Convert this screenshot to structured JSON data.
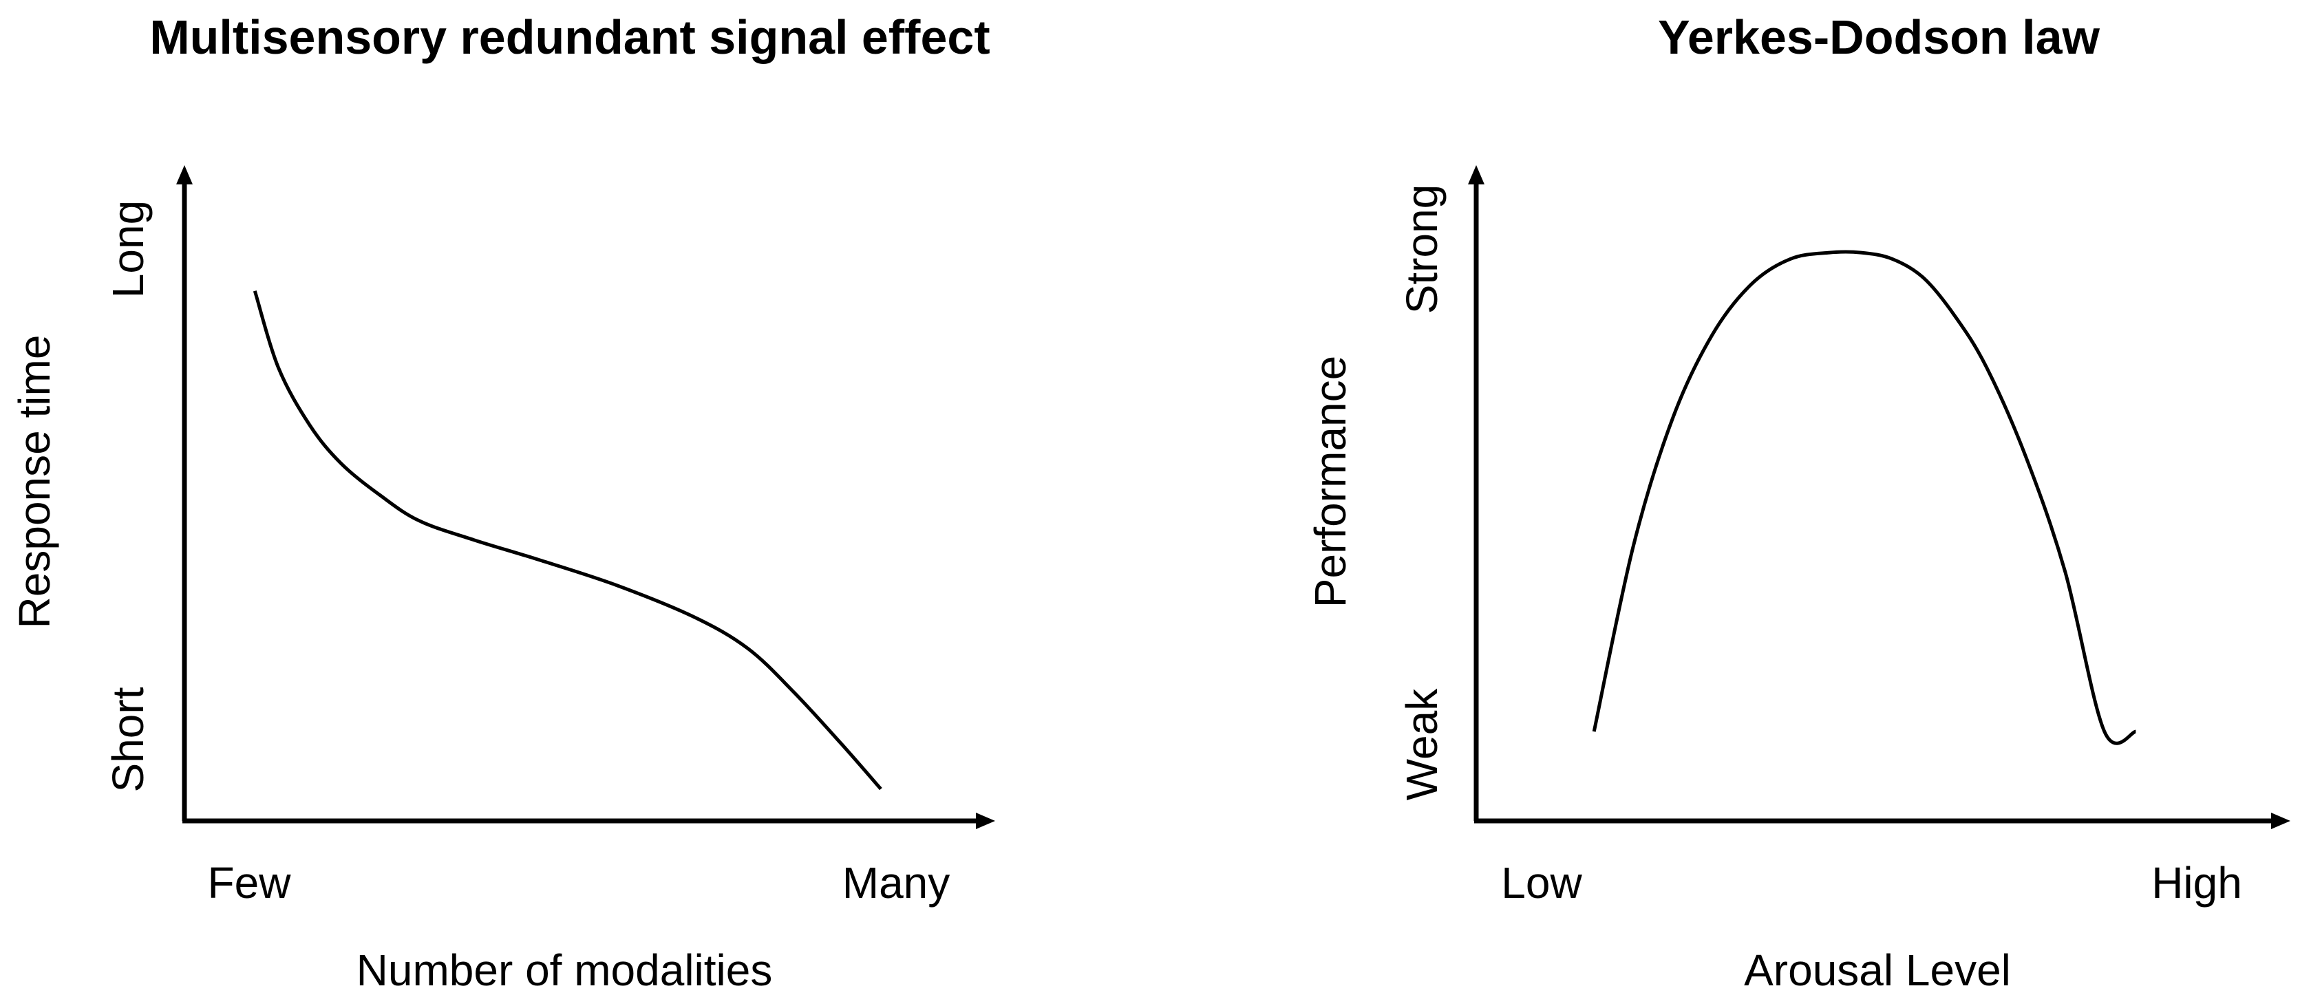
{
  "chart_data": [
    {
      "type": "line",
      "title": "Multisensory redundant signal effect",
      "xlabel": "Number of modalities",
      "ylabel": "Response time",
      "x_ticks": [
        "Few",
        "Many"
      ],
      "y_ticks": [
        "Short",
        "Long"
      ],
      "xlim": [
        0,
        100
      ],
      "ylim": [
        0,
        100
      ],
      "series": [
        {
          "name": "Response time",
          "x": [
            9,
            12,
            16,
            20,
            25,
            30,
            37,
            45,
            55,
            65,
            72,
            78,
            84,
            89
          ],
          "y": [
            83,
            71,
            62,
            56,
            51,
            47,
            44,
            41,
            37,
            32,
            27,
            20,
            12,
            5
          ]
        }
      ]
    },
    {
      "type": "line",
      "title": "Yerkes-Dodson law",
      "xlabel": "Arousal Level",
      "ylabel": "Performance",
      "x_ticks": [
        "Low",
        "High"
      ],
      "y_ticks": [
        "Weak",
        "Strong"
      ],
      "xlim": [
        0,
        100
      ],
      "ylim": [
        0,
        100
      ],
      "series": [
        {
          "name": "Performance",
          "x": [
            15,
            20,
            25,
            30,
            35,
            40,
            45,
            49,
            53,
            57,
            61,
            65,
            70,
            75,
            80,
            84
          ],
          "y": [
            14,
            43,
            63,
            76,
            84,
            88,
            89,
            89,
            88,
            85,
            79,
            71,
            57,
            39,
            14,
            14
          ]
        }
      ]
    }
  ]
}
